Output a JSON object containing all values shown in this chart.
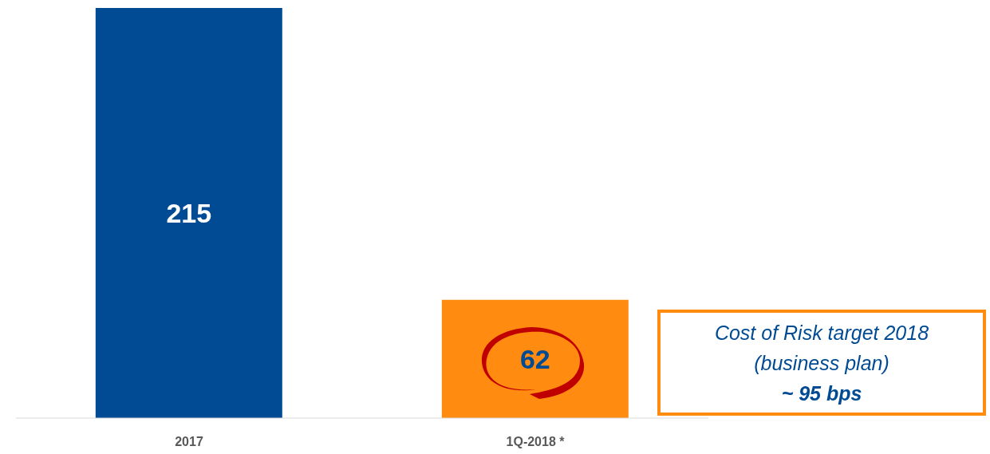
{
  "chart_data": {
    "type": "bar",
    "categories": [
      "2017",
      "1Q-2018 *"
    ],
    "values": [
      215,
      62
    ],
    "colors": [
      "#004b93",
      "#ff8c11"
    ],
    "data_labels": true,
    "annotations": [
      "Cost of Risk target 2018\n(business plan)\n~ 95 bps"
    ]
  }
}
